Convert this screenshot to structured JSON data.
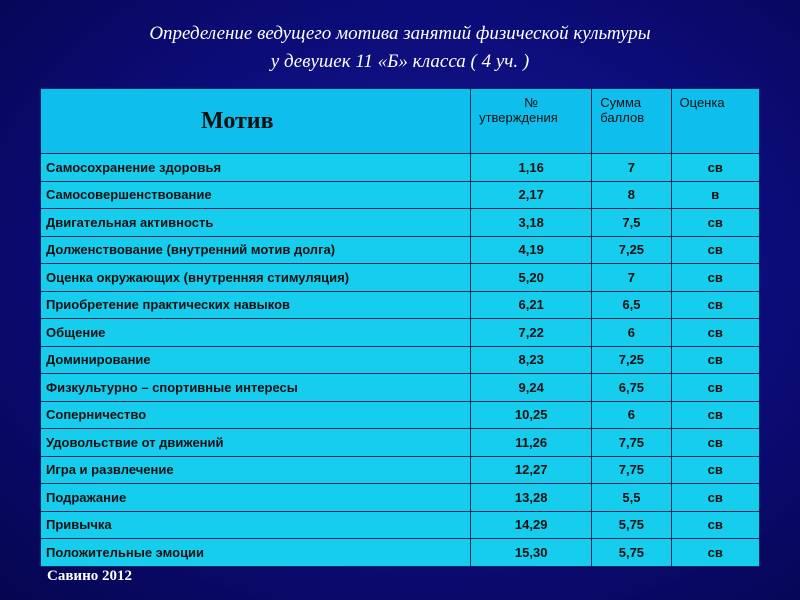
{
  "header": {
    "title": [
      "Определение ведущего мотива занятий физической культуры",
      "у  девушек  11 «Б» класса ( 4 уч. )"
    ]
  },
  "table": {
    "columns": [
      [
        "Мотив"
      ],
      [
        "№",
        "утверждения"
      ],
      [
        "Сумма",
        "баллов"
      ],
      [
        "Оценка"
      ]
    ],
    "rows": [
      [
        "Самосохранение здоровья",
        "1,16",
        "7",
        "св"
      ],
      [
        "Самосовершенствование",
        "2,17",
        "8",
        "в"
      ],
      [
        "Двигательная активность",
        "3,18",
        "7,5",
        "св"
      ],
      [
        "Долженствование (внутренний мотив долга)",
        "4,19",
        "7,25",
        "св"
      ],
      [
        "Оценка окружающих (внутренняя стимуляция)",
        "5,20",
        "7",
        "св"
      ],
      [
        "Приобретение практических навыков",
        "6,21",
        "6,5",
        "св"
      ],
      [
        "Общение",
        "7,22",
        "6",
        "св"
      ],
      [
        "Доминирование",
        "8,23",
        "7,25",
        "св"
      ],
      [
        "Физкультурно – спортивные интересы",
        "9,24",
        "6,75",
        "св"
      ],
      [
        "Соперничество",
        "10,25",
        "6",
        "св"
      ],
      [
        "Удовольствие от движений",
        "11,26",
        "7,75",
        "св"
      ],
      [
        "Игра и развлечение",
        "12,27",
        "7,75",
        "св"
      ],
      [
        "Подражание",
        "13,28",
        "5,5",
        "св"
      ],
      [
        "Привычка",
        "14,29",
        "5,75",
        "св"
      ],
      [
        "Положительные эмоции",
        "15,30",
        "5,75",
        "св"
      ]
    ]
  },
  "footer": {
    "text": "Савино 2012"
  }
}
